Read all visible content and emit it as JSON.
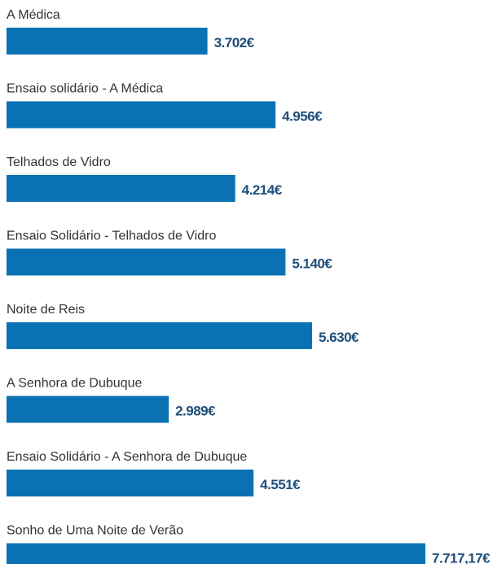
{
  "chart_data": {
    "type": "bar",
    "orientation": "horizontal",
    "color": "#0a72b3",
    "categories": [
      "A Médica",
      "Ensaio solidário - A Médica",
      "Telhados de Vidro",
      "Ensaio Solidário - Telhados de Vidro",
      "Noite de Reis",
      "A Senhora de Dubuque",
      "Ensaio Solidário - A Senhora de Dubuque",
      "Sonho de Uma Noite de Verão"
    ],
    "values": [
      3702,
      4956,
      4214,
      5140,
      5630,
      2989,
      4551,
      7717.17
    ],
    "value_labels": [
      "3.702€",
      "4.956€",
      "4.214€",
      "5.140€",
      "5.630€",
      "2.989€",
      "4.551€",
      "7.717,17€"
    ]
  }
}
